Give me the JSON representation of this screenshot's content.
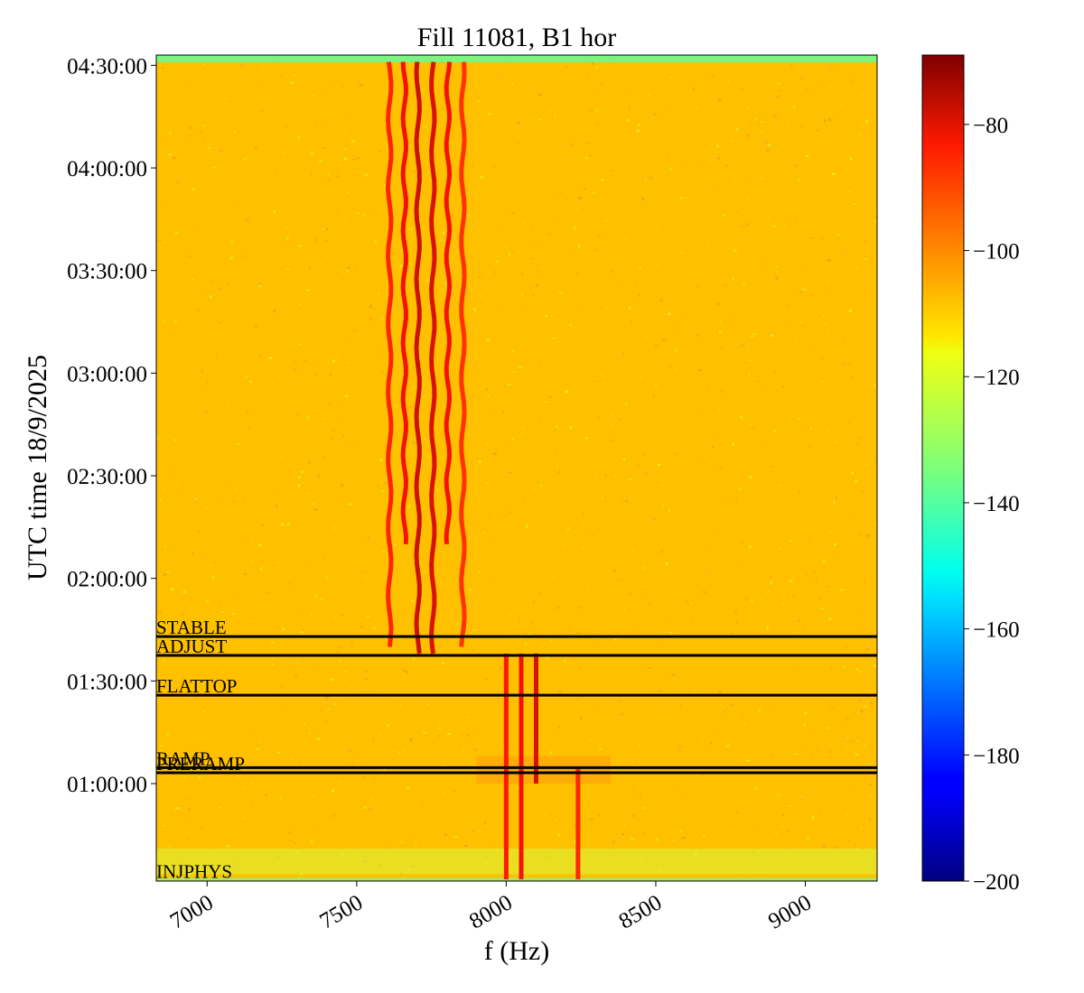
{
  "chart_data": {
    "type": "heatmap",
    "title": "Fill 11081, B1 hor",
    "xlabel": "f (Hz)",
    "ylabel": "UTC time 18/9/2025",
    "xlim": [
      6830,
      9240
    ],
    "ylim": [
      "00:31:30",
      "04:33:00"
    ],
    "x_ticks": [
      {
        "value": 7000,
        "label": "7000"
      },
      {
        "value": 7500,
        "label": "7500"
      },
      {
        "value": 8000,
        "label": "8000"
      },
      {
        "value": 8500,
        "label": "8500"
      },
      {
        "value": 9000,
        "label": "9000"
      }
    ],
    "y_ticks": [
      {
        "value": "01:00:00",
        "label": "01:00:00"
      },
      {
        "value": "01:30:00",
        "label": "01:30:00"
      },
      {
        "value": "02:00:00",
        "label": "02:00:00"
      },
      {
        "value": "02:30:00",
        "label": "02:30:00"
      },
      {
        "value": "03:00:00",
        "label": "03:00:00"
      },
      {
        "value": "03:30:00",
        "label": "03:30:00"
      },
      {
        "value": "04:00:00",
        "label": "04:00:00"
      },
      {
        "value": "04:30:00",
        "label": "04:30:00"
      }
    ],
    "phases": [
      {
        "label": "STABLE",
        "time": "01:43:00",
        "line": true
      },
      {
        "label": "ADJUST",
        "time": "01:37:30",
        "line": true
      },
      {
        "label": "FLATTOP",
        "time": "01:25:50",
        "line": true
      },
      {
        "label": "RAMP",
        "time": "01:04:40",
        "line": true
      },
      {
        "label": "PRERAMP",
        "time": "01:03:10",
        "line": true
      },
      {
        "label": "INJPHYS",
        "time": "00:33:00",
        "line": false
      }
    ],
    "colorbar": {
      "colormap": "jet",
      "range": [
        -200,
        -69
      ],
      "ticks": [
        {
          "value": -80,
          "label": "−80"
        },
        {
          "value": -100,
          "label": "−100"
        },
        {
          "value": -120,
          "label": "−120"
        },
        {
          "value": -140,
          "label": "−140"
        },
        {
          "value": -160,
          "label": "−160"
        },
        {
          "value": -180,
          "label": "−180"
        },
        {
          "value": -200,
          "label": "−200"
        }
      ]
    },
    "background_level": -110,
    "lines": [
      {
        "f": 7610,
        "t_start": "01:40:00",
        "t_end": "04:31:00",
        "level": -88,
        "drift_hz": 15
      },
      {
        "f": 7660,
        "t_start": "02:10:00",
        "t_end": "04:31:00",
        "level": -84,
        "drift_hz": 15
      },
      {
        "f": 7705,
        "t_start": "01:38:00",
        "t_end": "04:31:00",
        "level": -78,
        "drift_hz": 15
      },
      {
        "f": 7755,
        "t_start": "01:38:00",
        "t_end": "04:31:00",
        "level": -80,
        "drift_hz": 15
      },
      {
        "f": 7805,
        "t_start": "02:10:00",
        "t_end": "04:31:00",
        "level": -84,
        "drift_hz": 15
      },
      {
        "f": 7855,
        "t_start": "01:40:00",
        "t_end": "04:31:00",
        "level": -90,
        "drift_hz": 15
      },
      {
        "f": 8000,
        "t_start": "00:32:00",
        "t_end": "01:38:00",
        "level": -86,
        "drift_hz": 0
      },
      {
        "f": 8050,
        "t_start": "00:32:00",
        "t_end": "01:38:00",
        "level": -84,
        "drift_hz": 0
      },
      {
        "f": 8100,
        "t_start": "01:00:00",
        "t_end": "01:38:00",
        "level": -80,
        "drift_hz": 0
      },
      {
        "f": 8240,
        "t_start": "00:32:00",
        "t_end": "01:05:00",
        "level": -88,
        "drift_hz": 0
      }
    ]
  }
}
